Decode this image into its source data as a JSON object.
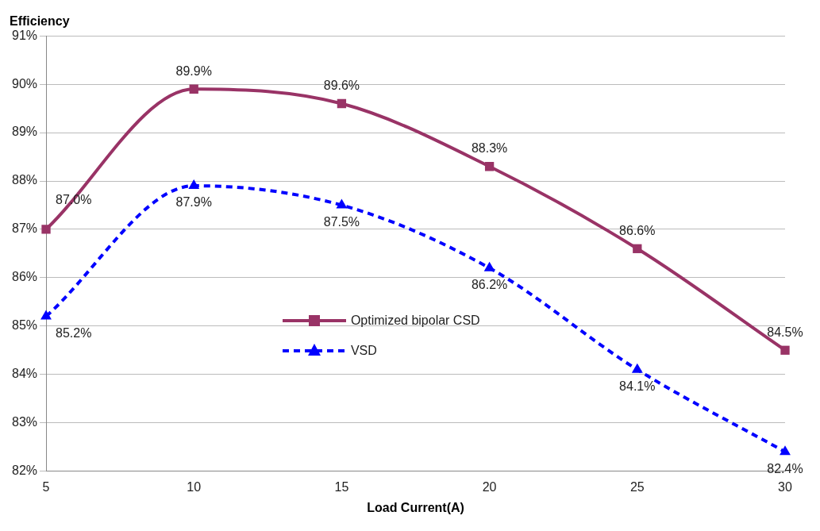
{
  "chart_data": {
    "type": "line",
    "ylabel": "Efficiency",
    "xlabel": "Load Current(A)",
    "categories": [
      "5",
      "10",
      "15",
      "20",
      "25",
      "30"
    ],
    "ylim": [
      82,
      91
    ],
    "yticks": [
      {
        "value": 82,
        "label": "82%"
      },
      {
        "value": 83,
        "label": "83%"
      },
      {
        "value": 84,
        "label": "84%"
      },
      {
        "value": 85,
        "label": "85%"
      },
      {
        "value": 86,
        "label": "86%"
      },
      {
        "value": 87,
        "label": "87%"
      },
      {
        "value": 88,
        "label": "88%"
      },
      {
        "value": 89,
        "label": "89%"
      },
      {
        "value": 90,
        "label": "90%"
      },
      {
        "value": 91,
        "label": "91%"
      }
    ],
    "grid": "y",
    "legend": "center",
    "series": [
      {
        "name": "Optimized bipolar CSD",
        "color": "#993366",
        "marker": "square",
        "line_style": "solid",
        "values": [
          87.0,
          89.9,
          89.6,
          88.3,
          86.6,
          84.5
        ],
        "value_labels": [
          "87.0%",
          "89.9%",
          "89.6%",
          "88.3%",
          "86.6%",
          "84.5%"
        ]
      },
      {
        "name": "VSD",
        "color": "#0000ff",
        "marker": "triangle",
        "line_style": "dashed",
        "values": [
          85.2,
          87.9,
          87.5,
          86.2,
          84.1,
          82.4
        ],
        "value_labels": [
          "85.2%",
          "87.9%",
          "87.5%",
          "86.2%",
          "84.1%",
          "82.4%"
        ]
      }
    ]
  }
}
